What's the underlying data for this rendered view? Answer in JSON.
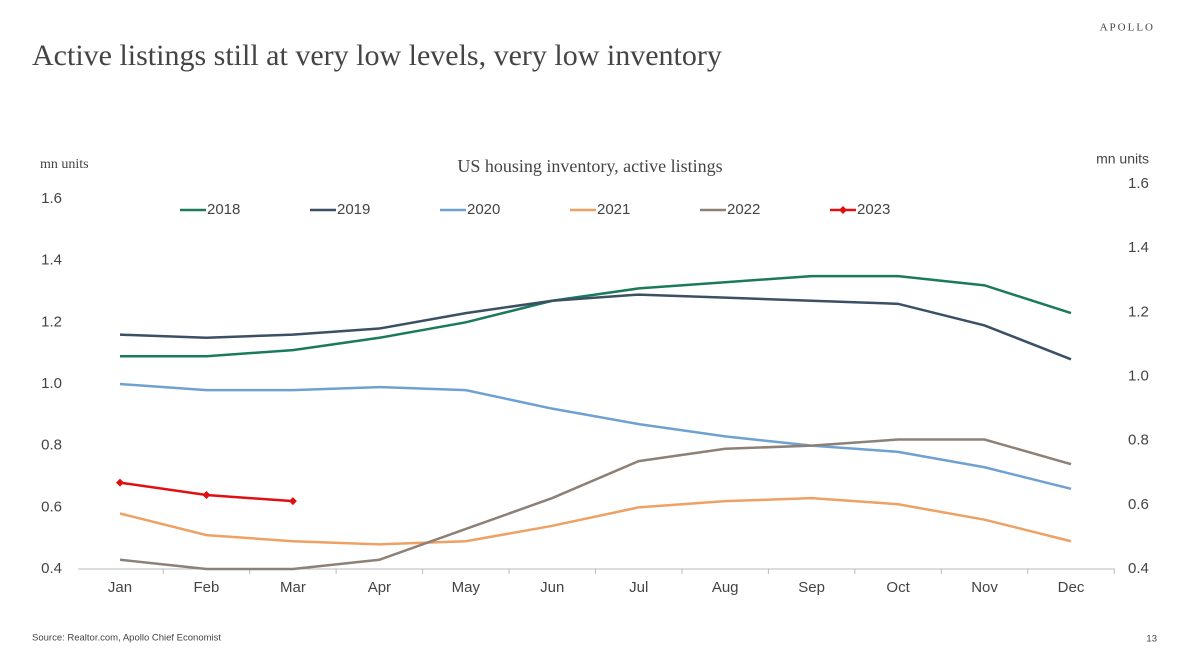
{
  "brand": "APOLLO",
  "page_title": "Active listings still at very low levels, very low inventory",
  "source": "Source: Realtor.com, Apollo Chief Economist",
  "page_number": "13",
  "chart_data": {
    "type": "line",
    "title": "US housing inventory, active listings",
    "ylabel": "mn units",
    "y2label": "mn units",
    "categories": [
      "Jan",
      "Feb",
      "Mar",
      "Apr",
      "May",
      "Jun",
      "Jul",
      "Aug",
      "Sep",
      "Oct",
      "Nov",
      "Dec"
    ],
    "ylim": [
      0.4,
      1.6
    ],
    "yticks": [
      0.4,
      0.6,
      0.8,
      {
        "value": 1,
        "label": "1.0"
      },
      1.2,
      1.4,
      1.6
    ],
    "y2lim": [
      0.4,
      1.6
    ],
    "y2ticks": [
      0.4,
      0.6,
      0.8,
      {
        "value": 1,
        "label": "1.0"
      },
      1.2,
      1.4,
      1.6
    ],
    "grid": false,
    "legend": "top",
    "series": [
      {
        "name": "2018",
        "color": "#1b7a5c",
        "values": [
          1.09,
          1.09,
          1.11,
          1.15,
          1.2,
          1.27,
          1.31,
          1.33,
          1.35,
          1.35,
          1.32,
          1.23
        ]
      },
      {
        "name": "2019",
        "color": "#3b4f65",
        "values": [
          1.16,
          1.15,
          1.16,
          1.18,
          1.23,
          1.27,
          1.29,
          1.28,
          1.27,
          1.26,
          1.19,
          1.08
        ]
      },
      {
        "name": "2020",
        "color": "#6fa1d0",
        "values": [
          1.0,
          0.98,
          0.98,
          0.99,
          0.98,
          0.92,
          0.87,
          0.83,
          0.8,
          0.78,
          0.73,
          0.66
        ]
      },
      {
        "name": "2021",
        "color": "#efa063",
        "values": [
          0.58,
          0.51,
          0.49,
          0.48,
          0.49,
          0.54,
          0.6,
          0.62,
          0.63,
          0.61,
          0.56,
          0.49
        ]
      },
      {
        "name": "2022",
        "color": "#8d8177",
        "values": [
          0.43,
          0.4,
          0.4,
          0.43,
          0.53,
          0.63,
          0.75,
          0.79,
          0.8,
          0.82,
          0.82,
          0.74
        ]
      },
      {
        "name": "2023",
        "color": "#e01010",
        "marker": "diamond",
        "values": [
          0.68,
          0.64,
          0.62,
          null,
          null,
          null,
          null,
          null,
          null,
          null,
          null,
          null
        ]
      }
    ]
  }
}
